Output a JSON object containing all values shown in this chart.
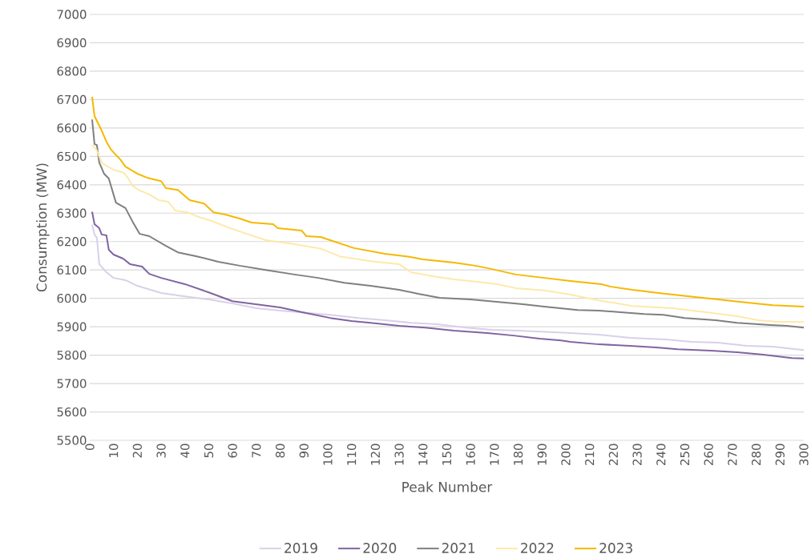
{
  "chart_data": {
    "type": "line",
    "xlabel": "Peak Number",
    "ylabel": "Consumption (MW)",
    "xlim": [
      0,
      300
    ],
    "ylim": [
      5500,
      7000
    ],
    "xticks": [
      0,
      10,
      20,
      30,
      40,
      50,
      60,
      70,
      80,
      90,
      100,
      110,
      120,
      130,
      140,
      150,
      160,
      170,
      180,
      190,
      200,
      210,
      220,
      230,
      240,
      250,
      260,
      270,
      280,
      290,
      300
    ],
    "yticks": [
      5500,
      5600,
      5700,
      5800,
      5900,
      6000,
      6100,
      6200,
      6300,
      6400,
      6500,
      6600,
      6700,
      6800,
      6900,
      7000
    ],
    "grid": "y",
    "legend": "bottom",
    "line_style": "solid",
    "series": [
      {
        "name": "2019",
        "color": "#d9d0e8",
        "x": [
          1,
          2,
          3,
          4,
          7,
          10,
          15,
          20,
          30,
          40,
          50,
          60,
          70,
          80,
          90,
          101,
          113,
          124,
          135,
          146,
          158,
          169,
          180,
          197,
          202,
          214,
          227,
          242,
          253,
          264,
          276,
          287,
          300
        ],
        "values": [
          6260,
          6225,
          6213,
          6120,
          6092,
          6072,
          6064,
          6044,
          6019,
          6007,
          5996,
          5982,
          5965,
          5957,
          5950,
          5942,
          5931,
          5923,
          5914,
          5909,
          5897,
          5889,
          5886,
          5880,
          5878,
          5872,
          5861,
          5855,
          5847,
          5844,
          5833,
          5830,
          5818
        ]
      },
      {
        "name": "2020",
        "color": "#8064a2",
        "x": [
          1,
          2,
          4,
          5,
          7,
          8,
          10,
          14,
          17,
          22,
          25,
          30,
          40,
          50,
          60,
          70,
          80,
          90,
          101,
          110,
          118,
          130,
          141,
          153,
          167,
          178,
          189,
          198,
          202,
          214,
          227,
          238,
          247,
          261,
          272,
          283,
          295,
          300
        ],
        "values": [
          6305,
          6261,
          6247,
          6225,
          6222,
          6171,
          6154,
          6140,
          6120,
          6112,
          6086,
          6072,
          6050,
          6021,
          5990,
          5979,
          5968,
          5950,
          5931,
          5920,
          5914,
          5903,
          5897,
          5886,
          5878,
          5869,
          5858,
          5852,
          5847,
          5838,
          5833,
          5827,
          5821,
          5816,
          5810,
          5802,
          5790,
          5788
        ]
      },
      {
        "name": "2021",
        "color": "#7f7f7f",
        "x": [
          1,
          2,
          3,
          4,
          6,
          8,
          9,
          11,
          15,
          18,
          21,
          25,
          32,
          37,
          45,
          54,
          63,
          74,
          86,
          96,
          107,
          118,
          130,
          138,
          147,
          160,
          171,
          182,
          191,
          205,
          214,
          223,
          233,
          241,
          250,
          263,
          272,
          286,
          293,
          300
        ],
        "values": [
          6630,
          6543,
          6540,
          6478,
          6439,
          6422,
          6394,
          6337,
          6318,
          6270,
          6227,
          6219,
          6185,
          6162,
          6148,
          6129,
          6115,
          6100,
          6084,
          6072,
          6055,
          6044,
          6030,
          6016,
          6002,
          5996,
          5988,
          5979,
          5971,
          5959,
          5957,
          5951,
          5945,
          5942,
          5931,
          5923,
          5914,
          5906,
          5903,
          5897
        ]
      },
      {
        "name": "2022",
        "color": "#fde9a9",
        "x": [
          1,
          3,
          5,
          7,
          10,
          14,
          16,
          18,
          21,
          25,
          29,
          33,
          36,
          41,
          45,
          52,
          59,
          66,
          74,
          86,
          97,
          105,
          118,
          130,
          135,
          144,
          153,
          163,
          171,
          179,
          191,
          202,
          214,
          228,
          245,
          259,
          272,
          281,
          289,
          300
        ],
        "values": [
          6540,
          6521,
          6478,
          6467,
          6453,
          6444,
          6425,
          6396,
          6380,
          6366,
          6346,
          6340,
          6309,
          6303,
          6289,
          6270,
          6247,
          6227,
          6205,
          6191,
          6175,
          6148,
          6131,
          6120,
          6092,
          6078,
          6067,
          6058,
          6050,
          6036,
          6028,
          6013,
          5993,
          5973,
          5965,
          5951,
          5937,
          5923,
          5917,
          5917
        ]
      },
      {
        "name": "2023",
        "color": "#f5b800",
        "x": [
          1,
          2,
          5,
          7,
          9,
          13,
          15,
          20,
          24,
          30,
          32,
          37,
          42,
          48,
          52,
          57,
          63,
          68,
          77,
          79,
          89,
          91,
          97,
          101,
          111,
          124,
          133,
          140,
          153,
          162,
          169,
          179,
          191,
          202,
          215,
          219,
          228,
          239,
          252,
          264,
          273,
          287,
          300
        ],
        "values": [
          6710,
          6642,
          6591,
          6552,
          6523,
          6487,
          6464,
          6439,
          6425,
          6413,
          6388,
          6382,
          6346,
          6334,
          6303,
          6295,
          6281,
          6267,
          6261,
          6247,
          6239,
          6219,
          6216,
          6205,
          6177,
          6157,
          6148,
          6137,
          6126,
          6115,
          6103,
          6084,
          6072,
          6061,
          6050,
          6041,
          6030,
          6019,
          6007,
          5996,
          5988,
          5976,
          5971
        ]
      }
    ]
  }
}
